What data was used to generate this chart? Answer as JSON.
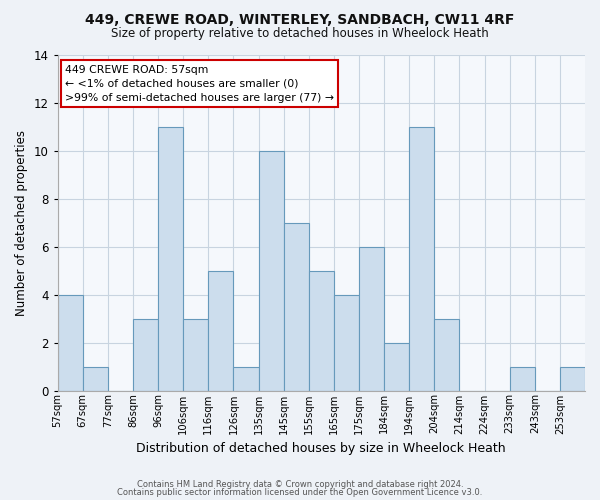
{
  "title1": "449, CREWE ROAD, WINTERLEY, SANDBACH, CW11 4RF",
  "title2": "Size of property relative to detached houses in Wheelock Heath",
  "xlabel": "Distribution of detached houses by size in Wheelock Heath",
  "ylabel": "Number of detached properties",
  "bin_labels": [
    "57sqm",
    "67sqm",
    "77sqm",
    "86sqm",
    "96sqm",
    "106sqm",
    "116sqm",
    "126sqm",
    "135sqm",
    "145sqm",
    "155sqm",
    "165sqm",
    "175sqm",
    "184sqm",
    "194sqm",
    "204sqm",
    "214sqm",
    "224sqm",
    "233sqm",
    "243sqm",
    "253sqm"
  ],
  "bar_heights": [
    4,
    1,
    0,
    3,
    11,
    3,
    5,
    1,
    10,
    7,
    5,
    4,
    6,
    2,
    11,
    3,
    0,
    0,
    1,
    0,
    1
  ],
  "bar_color": "#ccdded",
  "bar_edge_color": "#6699bb",
  "annotation_title": "449 CREWE ROAD: 57sqm",
  "annotation_line1": "← <1% of detached houses are smaller (0)",
  "annotation_line2": ">99% of semi-detached houses are larger (77) →",
  "annotation_box_color": "#ffffff",
  "annotation_box_edge": "#cc0000",
  "ylim": [
    0,
    14
  ],
  "yticks": [
    0,
    2,
    4,
    6,
    8,
    10,
    12,
    14
  ],
  "footer1": "Contains HM Land Registry data © Crown copyright and database right 2024.",
  "footer2": "Contains public sector information licensed under the Open Government Licence v3.0.",
  "bg_color": "#eef2f7",
  "plot_bg_color": "#f5f8fc",
  "grid_color": "#c8d4e0"
}
